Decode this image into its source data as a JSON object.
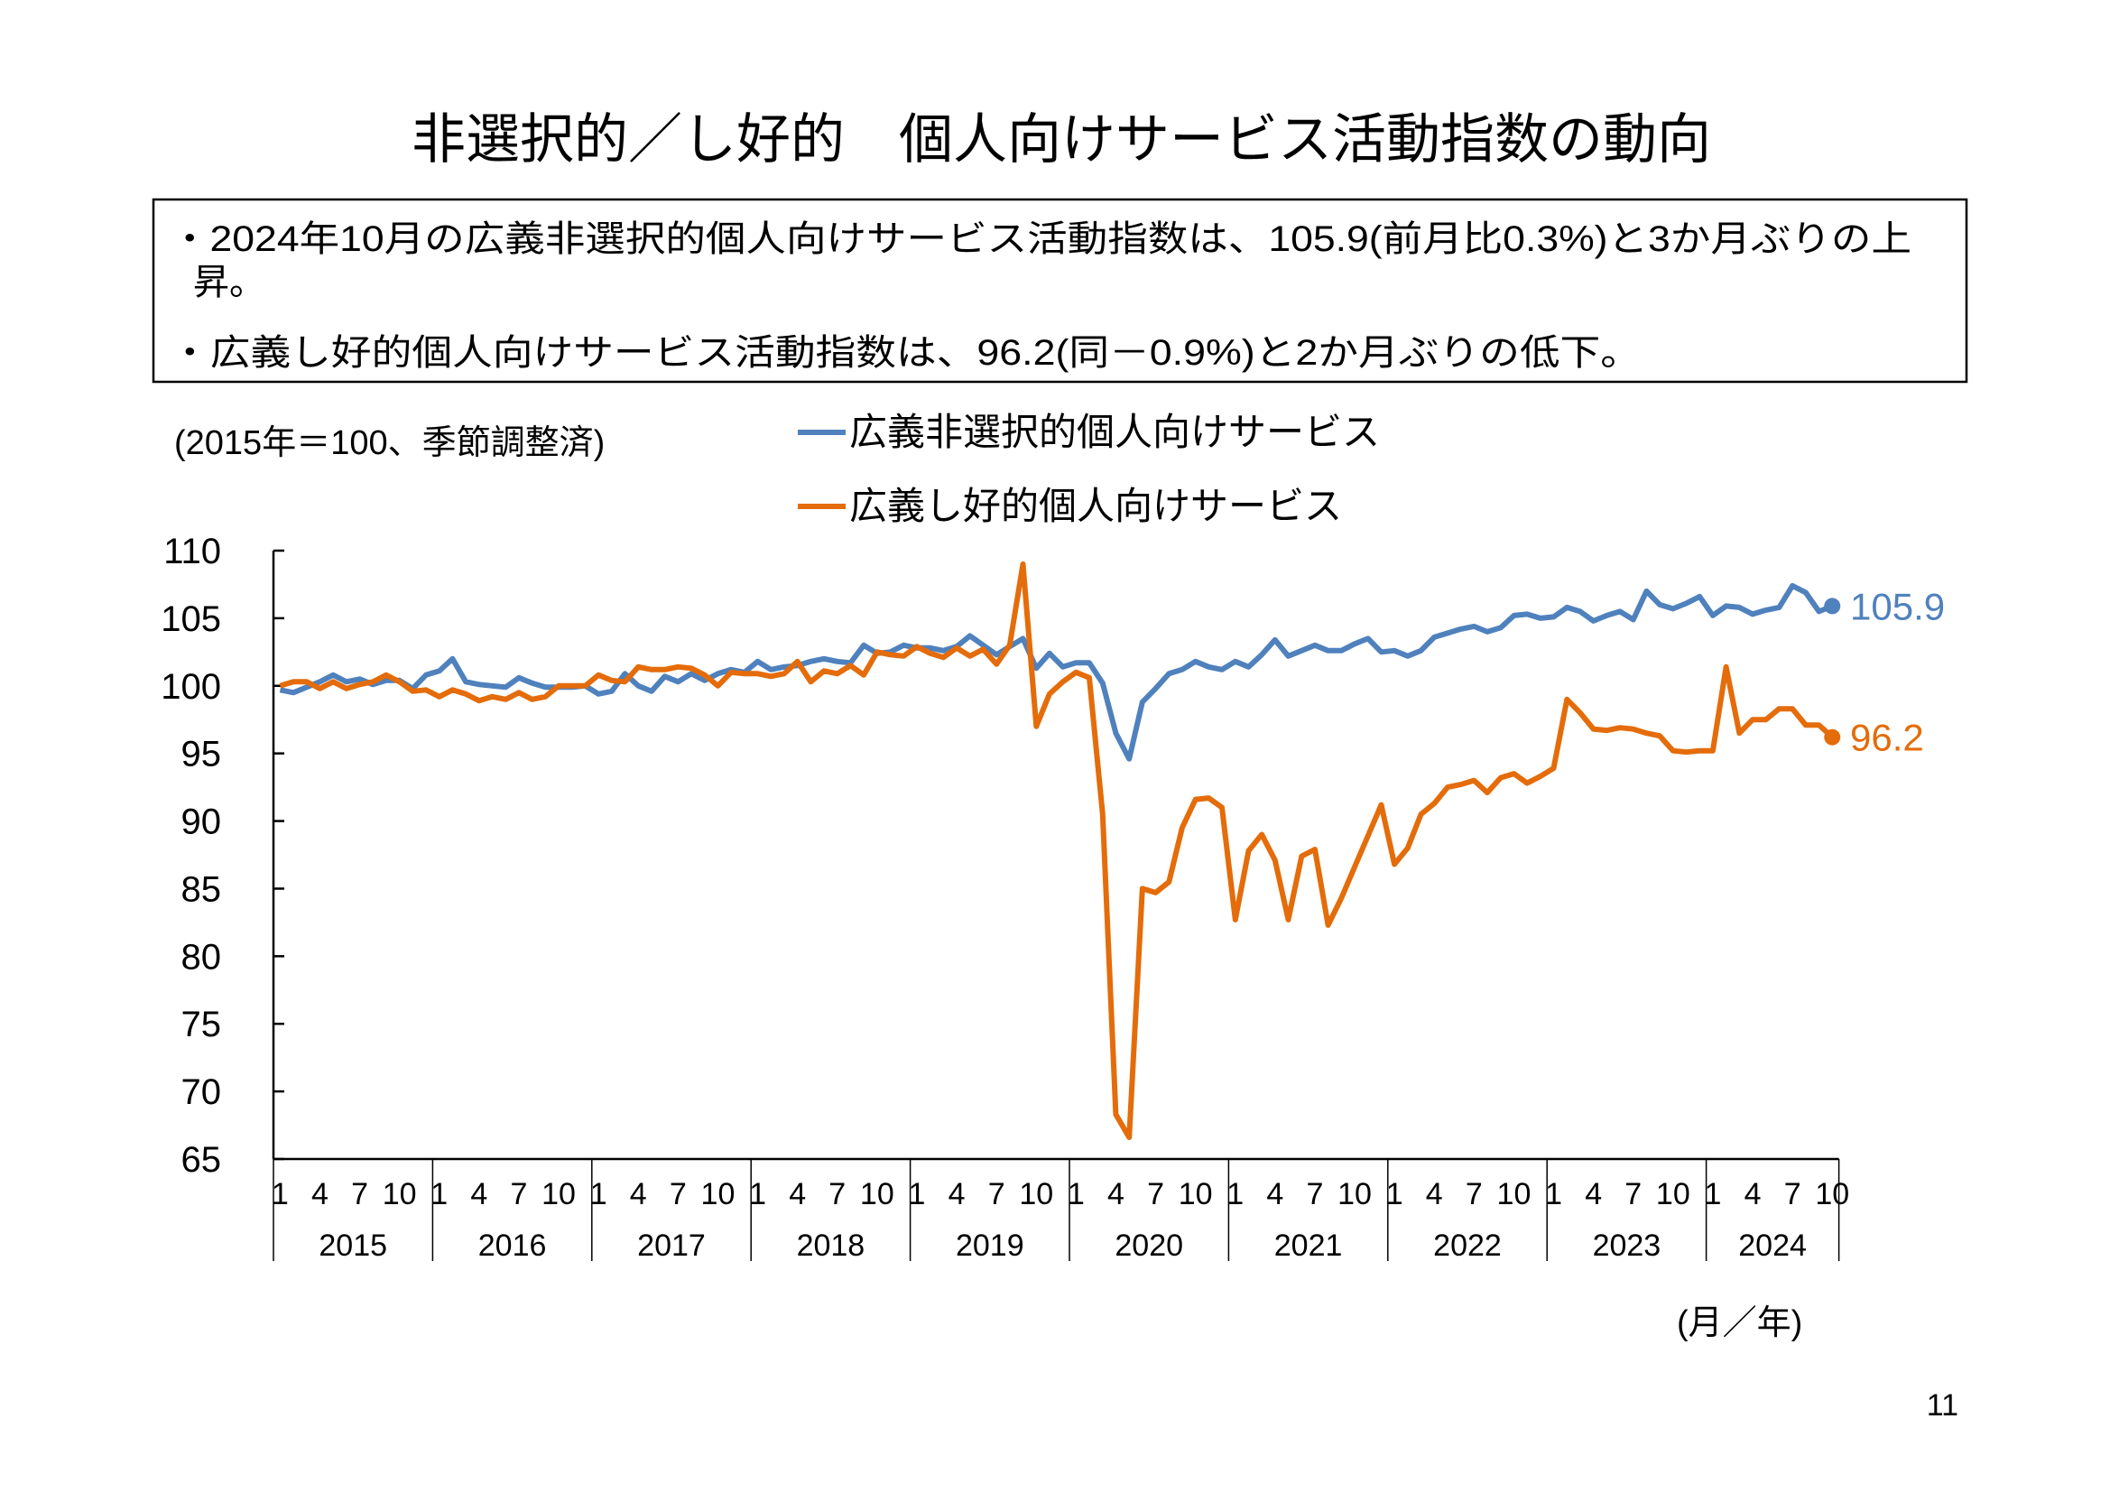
{
  "title": "非選択的／し好的　個人向けサービス活動指数の動向",
  "summary": {
    "bullet_1_line_1": "・2024年10月の広義非選択的個人向けサービス活動指数は、105.9(前月比0.3%)と3か月ぶりの上",
    "bullet_1_line_2": "昇。",
    "bullet_2": "・広義し好的個人向けサービス活動指数は、96.2(同－0.9%)と2か月ぶりの低下。"
  },
  "page_number": "11",
  "chart_data": {
    "type": "line",
    "unit_note": "(2015年＝100、季節調整済)",
    "xlabel": "(月／年)",
    "ylim": [
      65,
      110
    ],
    "yticks": [
      "110",
      "105",
      "100",
      "95",
      "90",
      "85",
      "80",
      "75",
      "70",
      "65"
    ],
    "ytick_values": [
      110,
      105,
      100,
      95,
      90,
      85,
      80,
      75,
      70,
      65
    ],
    "month_ticks": [
      "1",
      "4",
      "7",
      "10"
    ],
    "years": [
      "2015",
      "2016",
      "2017",
      "2018",
      "2019",
      "2020",
      "2021",
      "2022",
      "2023",
      "2024"
    ],
    "x_start": "2015-01",
    "x_end": "2024-10",
    "legend": [
      "広義非選択的個人向けサービス",
      "広義し好的個人向けサービス"
    ],
    "series": [
      {
        "name": "広義非選択的個人向けサービス",
        "color": "#4F81BD",
        "end_label": "105.9",
        "values": [
          99.7,
          99.5,
          99.9,
          100.3,
          100.8,
          100.3,
          100.5,
          100.1,
          100.4,
          100.4,
          99.8,
          100.8,
          101.1,
          102.0,
          100.3,
          100.1,
          100.0,
          99.9,
          100.6,
          100.2,
          99.9,
          99.9,
          99.9,
          100.0,
          99.4,
          99.6,
          100.9,
          100.0,
          99.6,
          100.7,
          100.3,
          100.9,
          100.4,
          100.9,
          101.2,
          101.0,
          101.8,
          101.2,
          101.4,
          101.5,
          101.8,
          102.0,
          101.8,
          101.7,
          103.0,
          102.4,
          102.5,
          103.0,
          102.8,
          102.8,
          102.6,
          102.9,
          103.7,
          103.0,
          102.3,
          102.9,
          103.5,
          101.3,
          102.4,
          101.4,
          101.7,
          101.7,
          100.2,
          96.5,
          94.6,
          98.8,
          99.8,
          100.9,
          101.2,
          101.8,
          101.4,
          101.2,
          101.8,
          101.4,
          102.3,
          103.4,
          102.2,
          102.6,
          103.0,
          102.6,
          102.6,
          103.1,
          103.5,
          102.5,
          102.6,
          102.2,
          102.6,
          103.6,
          103.9,
          104.2,
          104.4,
          104.0,
          104.3,
          105.2,
          105.3,
          105.0,
          105.1,
          105.8,
          105.5,
          104.8,
          105.2,
          105.5,
          104.9,
          107.0,
          106.0,
          105.7,
          106.1,
          106.6,
          105.2,
          105.9,
          105.8,
          105.3,
          105.6,
          105.8,
          107.4,
          106.9,
          105.5,
          105.9
        ]
      },
      {
        "name": "広義し好的個人向けサービス",
        "color": "#E46C0A",
        "end_label": "96.2",
        "values": [
          100.0,
          100.3,
          100.3,
          99.8,
          100.3,
          99.8,
          100.1,
          100.3,
          100.8,
          100.3,
          99.6,
          99.7,
          99.2,
          99.7,
          99.4,
          98.9,
          99.2,
          99.0,
          99.5,
          99.0,
          99.2,
          100.0,
          100.0,
          100.0,
          100.8,
          100.4,
          100.3,
          101.4,
          101.2,
          101.2,
          101.4,
          101.3,
          100.8,
          100.0,
          101.0,
          100.9,
          100.9,
          100.7,
          100.9,
          101.8,
          100.3,
          101.1,
          100.9,
          101.5,
          100.8,
          102.5,
          102.3,
          102.2,
          102.9,
          102.4,
          102.1,
          102.8,
          102.2,
          102.7,
          101.6,
          103.0,
          109.0,
          97.0,
          99.4,
          100.3,
          101.0,
          100.6,
          90.5,
          68.3,
          66.6,
          85.0,
          84.7,
          85.5,
          89.5,
          91.6,
          91.7,
          91.0,
          82.7,
          87.8,
          89.0,
          87.1,
          82.7,
          87.4,
          87.9,
          82.3,
          84.3,
          86.6,
          88.9,
          91.2,
          86.8,
          88.0,
          90.5,
          91.3,
          92.5,
          92.7,
          93.0,
          92.1,
          93.2,
          93.5,
          92.8,
          93.3,
          93.9,
          99.0,
          98.0,
          96.8,
          96.7,
          96.9,
          96.8,
          96.5,
          96.3,
          95.2,
          95.1,
          95.2,
          95.2,
          101.4,
          96.5,
          97.5,
          97.5,
          98.3,
          98.3,
          97.1,
          97.1,
          96.2
        ]
      }
    ]
  }
}
